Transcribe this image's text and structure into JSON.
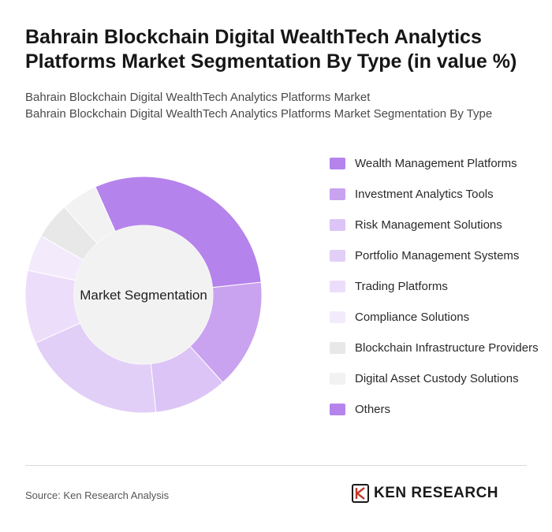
{
  "title": "Bahrain Blockchain Digital WealthTech Analytics Platforms Market Segmentation By Type (in value %)",
  "subtitle_lines": [
    "Bahrain Blockchain Digital WealthTech Analytics Platforms Market",
    "Bahrain Blockchain Digital WealthTech Analytics Platforms Market Segmentation By Type"
  ],
  "chart_data": {
    "type": "pie",
    "variant": "donut",
    "center_label": "Market Segmentation",
    "legend_position": "right",
    "categories": [
      "Wealth Management Platforms",
      "Investment Analytics Tools",
      "Risk Management Solutions",
      "Portfolio Management Systems",
      "Trading Platforms",
      "Compliance Solutions",
      "Blockchain Infrastructure Providers",
      "Digital Asset Custody Solutions",
      "Others"
    ],
    "values": [
      30,
      15,
      10,
      20,
      10,
      5,
      5,
      5,
      0
    ],
    "colors": [
      "#b583ec",
      "#c9a2f0",
      "#dcc4f6",
      "#e2cff7",
      "#ecdefa",
      "#f3ebfc",
      "#e8e8e8",
      "#f2f2f2",
      "#b583ec"
    ]
  },
  "footer": {
    "source": "Source: Ken Research Analysis",
    "logo_text": "KEN RESEARCH",
    "logo_icon": "ken-research-k-icon"
  }
}
